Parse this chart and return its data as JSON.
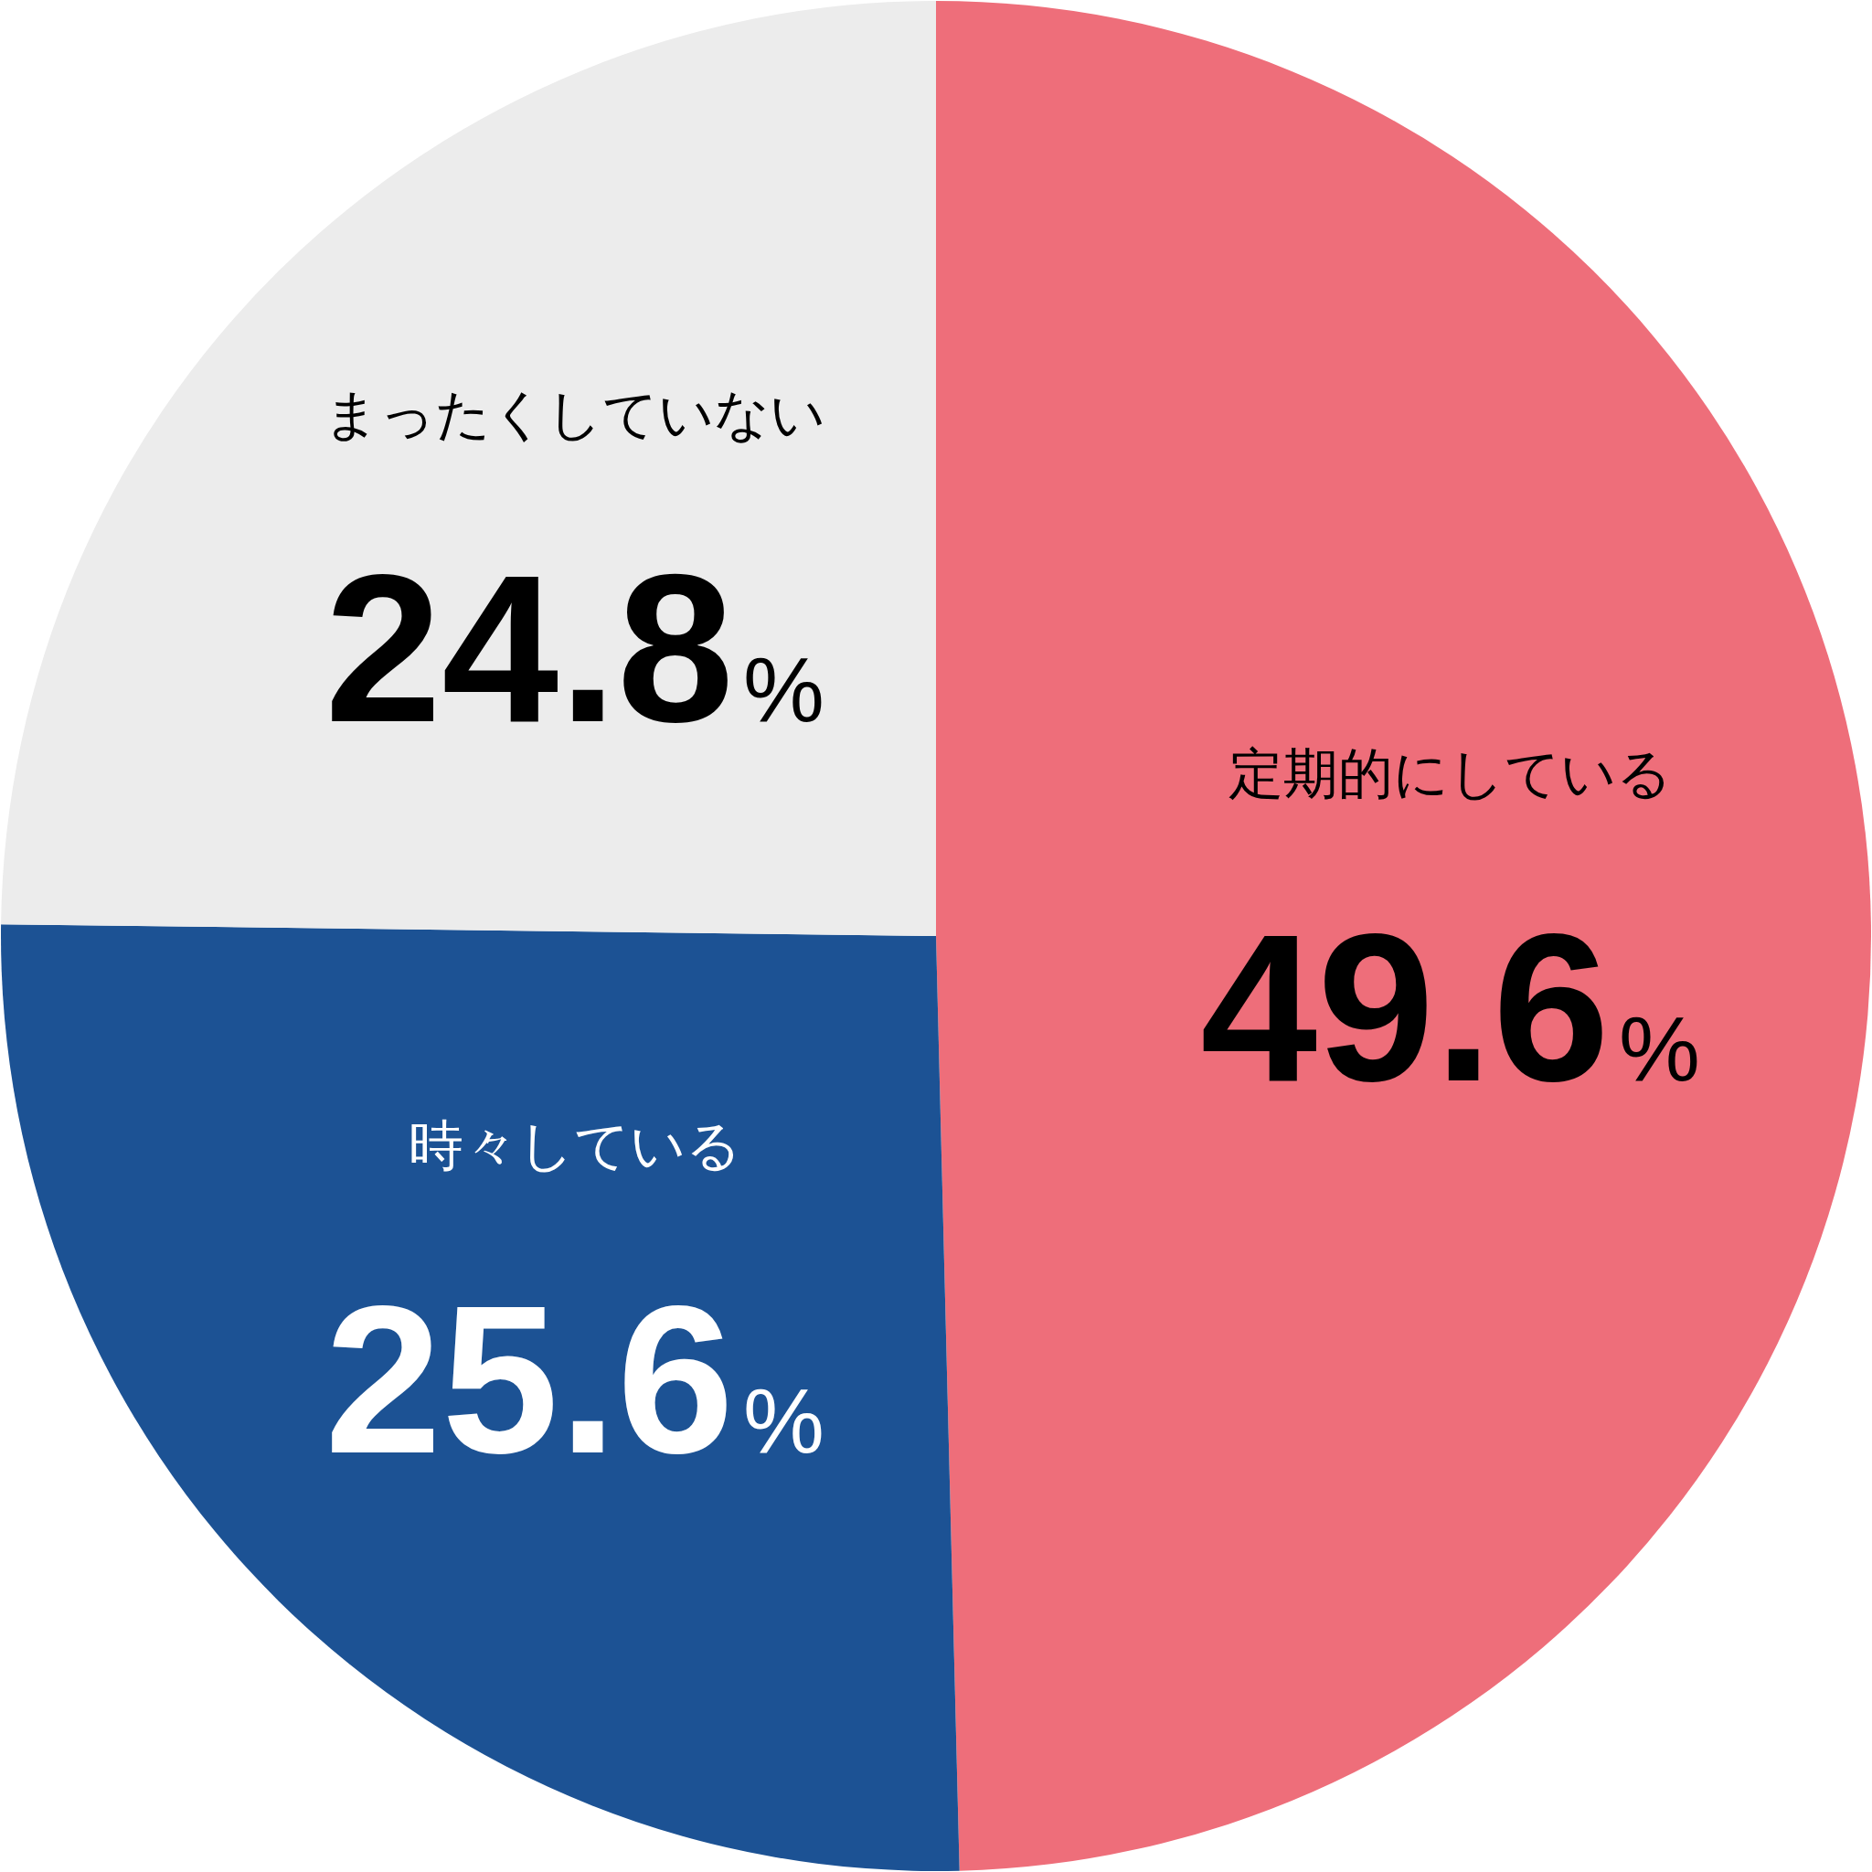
{
  "chart_data": {
    "type": "pie",
    "categories": [
      "定期的にしている",
      "時々している",
      "まったくしていない"
    ],
    "values": [
      49.6,
      25.6,
      24.8
    ],
    "colors": [
      "#ee6e7a",
      "#1c5294",
      "#ececec"
    ],
    "data_labels": true,
    "value_labels": [
      "49.6%",
      "25.6%",
      "24.8%"
    ]
  }
}
